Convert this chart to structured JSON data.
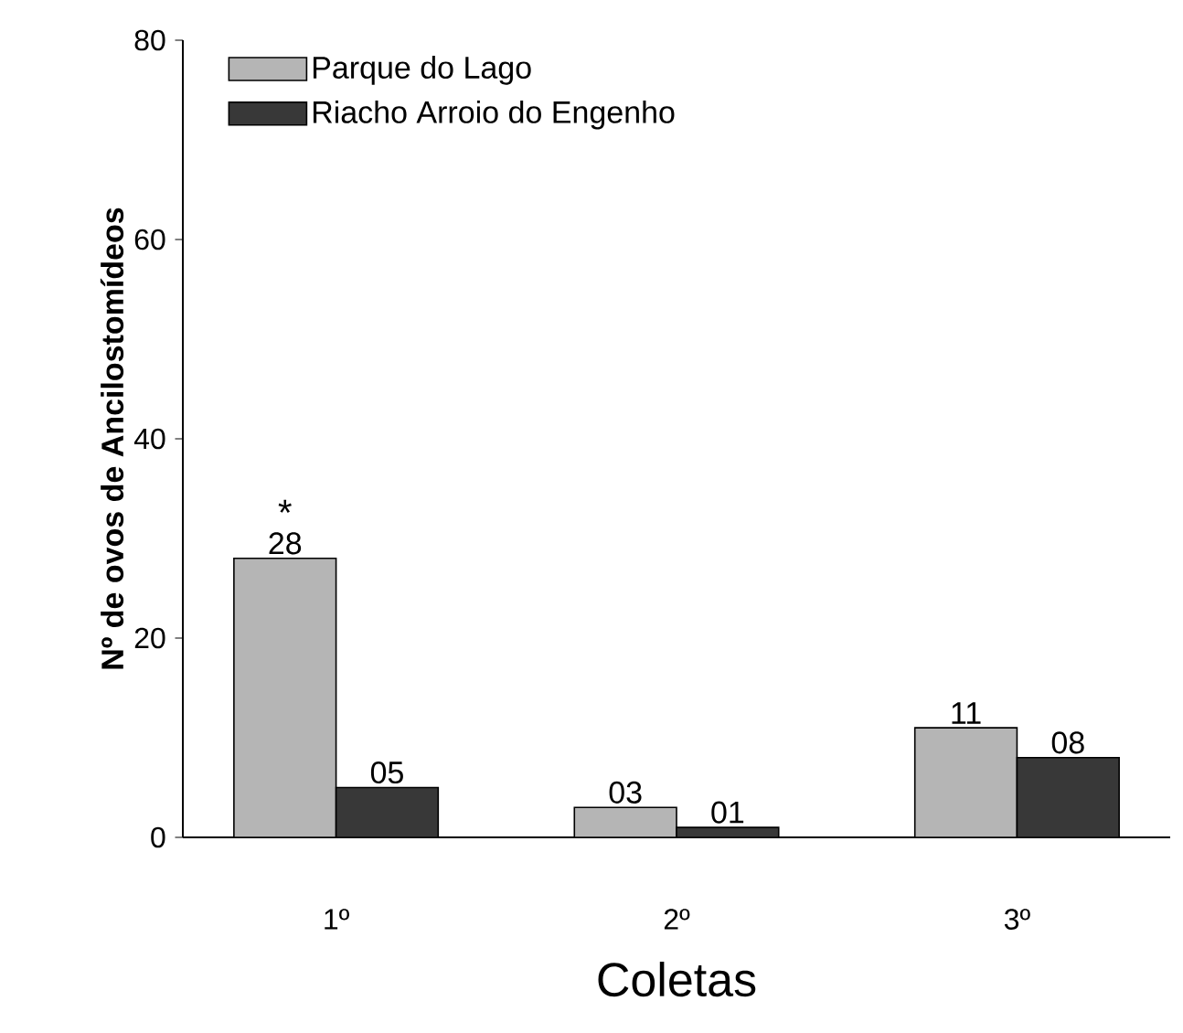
{
  "chart_data": {
    "type": "bar",
    "xlabel": "Coletas",
    "ylabel": "Nº de ovos de Ancilostomídeos",
    "categories": [
      "1º",
      "2º",
      "3º"
    ],
    "series": [
      {
        "name": "Parque do Lago",
        "color": "#b5b5b5",
        "values": [
          28,
          3,
          11
        ],
        "value_labels": [
          "28",
          "03",
          "11"
        ]
      },
      {
        "name": "Riacho Arroio do Engenho",
        "color": "#383838",
        "values": [
          5,
          1,
          8
        ],
        "value_labels": [
          "05",
          "01",
          "08"
        ]
      }
    ],
    "ylim": [
      0,
      80
    ],
    "yticks": [
      0,
      20,
      40,
      60,
      80
    ],
    "annotations": [
      {
        "text": "*",
        "x": "1º",
        "y": 28
      }
    ],
    "legend": "top left"
  }
}
